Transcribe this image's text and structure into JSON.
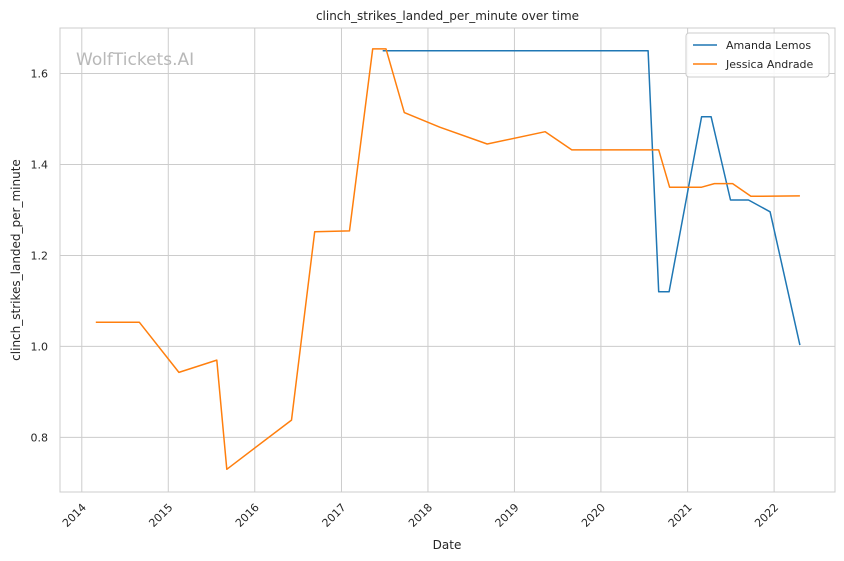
{
  "watermark": "WolfTickets.AI",
  "colors": {
    "background": "#ffffff",
    "grid": "#cccccc",
    "axes_border": "#cccccc",
    "series": [
      "#1f77b4",
      "#ff7f0e"
    ]
  },
  "chart_data": {
    "type": "line",
    "title": "clinch_strikes_landed_per_minute over time",
    "xlabel": "Date",
    "ylabel": "clinch_strikes_landed_per_minute",
    "x_type": "date",
    "xlim": [
      "2013-10-01",
      "2022-09-15"
    ],
    "ylim": [
      0.68,
      1.7
    ],
    "x_ticks": [
      "2014",
      "2015",
      "2016",
      "2017",
      "2018",
      "2019",
      "2020",
      "2021",
      "2022"
    ],
    "y_ticks": [
      "0.8",
      "1.0",
      "1.2",
      "1.4",
      "1.6"
    ],
    "grid": true,
    "legend_position": "top-right",
    "series": [
      {
        "name": "Amanda Lemos",
        "color": "#1f77b4",
        "points": [
          [
            "2017-06-24",
            1.65
          ],
          [
            "2020-07-18",
            1.65
          ],
          [
            "2020-09-01",
            1.12
          ],
          [
            "2020-10-15",
            1.12
          ],
          [
            "2021-03-01",
            1.505
          ],
          [
            "2021-04-10",
            1.505
          ],
          [
            "2021-07-01",
            1.322
          ],
          [
            "2021-09-15",
            1.322
          ],
          [
            "2021-12-15",
            1.296
          ],
          [
            "2022-04-20",
            1.003
          ]
        ]
      },
      {
        "name": "Jessica Andrade",
        "color": "#ff7f0e",
        "points": [
          [
            "2014-03-01",
            1.053
          ],
          [
            "2014-09-01",
            1.053
          ],
          [
            "2015-02-15",
            0.943
          ],
          [
            "2015-07-25",
            0.97
          ],
          [
            "2015-09-05",
            0.73
          ],
          [
            "2016-06-04",
            0.838
          ],
          [
            "2016-09-10",
            1.252
          ],
          [
            "2017-02-04",
            1.254
          ],
          [
            "2017-05-13",
            1.654
          ],
          [
            "2017-07-08",
            1.654
          ],
          [
            "2017-09-23",
            1.514
          ],
          [
            "2018-02-20",
            1.482
          ],
          [
            "2018-09-08",
            1.445
          ],
          [
            "2019-05-11",
            1.472
          ],
          [
            "2019-08-31",
            1.432
          ],
          [
            "2020-09-01",
            1.432
          ],
          [
            "2020-10-17",
            1.35
          ],
          [
            "2021-03-01",
            1.35
          ],
          [
            "2021-04-24",
            1.358
          ],
          [
            "2021-07-10",
            1.358
          ],
          [
            "2021-09-25",
            1.33
          ],
          [
            "2022-04-20",
            1.331
          ]
        ]
      }
    ]
  }
}
